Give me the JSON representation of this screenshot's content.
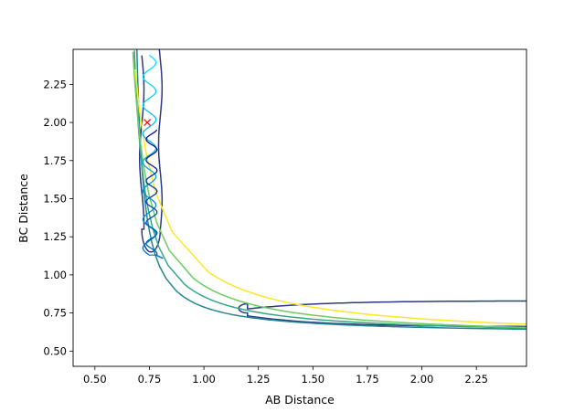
{
  "chart_data": {
    "type": "contour",
    "title": "",
    "xlabel": "AB Distance",
    "ylabel": "BC Distance",
    "xlim": [
      0.4,
      2.48
    ],
    "ylim": [
      0.4,
      2.48
    ],
    "x_ticks": [
      0.5,
      0.75,
      1.0,
      1.25,
      1.5,
      1.75,
      2.0,
      2.25
    ],
    "x_tick_labels": [
      "0.50",
      "0.75",
      "1.00",
      "1.25",
      "1.50",
      "1.75",
      "2.00",
      "2.25"
    ],
    "y_ticks": [
      0.5,
      0.75,
      1.0,
      1.25,
      1.5,
      1.75,
      2.0,
      2.25
    ],
    "y_tick_labels": [
      "0.50",
      "0.75",
      "1.00",
      "1.25",
      "1.50",
      "1.75",
      "2.00",
      "2.25"
    ],
    "grid": false,
    "legend": "none",
    "contour_levels": [
      {
        "color": "#2a3a86",
        "corner": [
          0.8,
          0.83
        ],
        "asymptote_x": 0.8,
        "asymptote_y": 0.83,
        "closed_channel_tip": [
          1.16,
          0.78
        ],
        "closed_channel_lower_y": 0.66,
        "closed_channel_tip_y": 1.15
      },
      {
        "color": "#25878f",
        "corner": [
          0.87,
          0.9
        ],
        "asymptote_x": 0.66,
        "asymptote_y": 0.61
      },
      {
        "color": "#33a785",
        "corner": [
          0.91,
          0.94
        ],
        "asymptote_x": 0.63,
        "asymptote_y": 0.6
      },
      {
        "color": "#6ecb5e",
        "corner": [
          0.95,
          0.98
        ],
        "asymptote_x": 0.6,
        "asymptote_y": 0.58
      },
      {
        "color": "#fde724",
        "corner": [
          1.02,
          1.02
        ],
        "asymptote_x": 0.57,
        "asymptote_y": 0.57
      }
    ],
    "trajectory": {
      "start_marker": {
        "x": 0.74,
        "y": 2.0,
        "symbol": "x",
        "color": "#ff0000"
      },
      "turning_point_y": 1.13,
      "x_oscillation_range": [
        0.7,
        0.8
      ],
      "color_start": "#00e5ff",
      "color_end": "#00008b"
    }
  }
}
